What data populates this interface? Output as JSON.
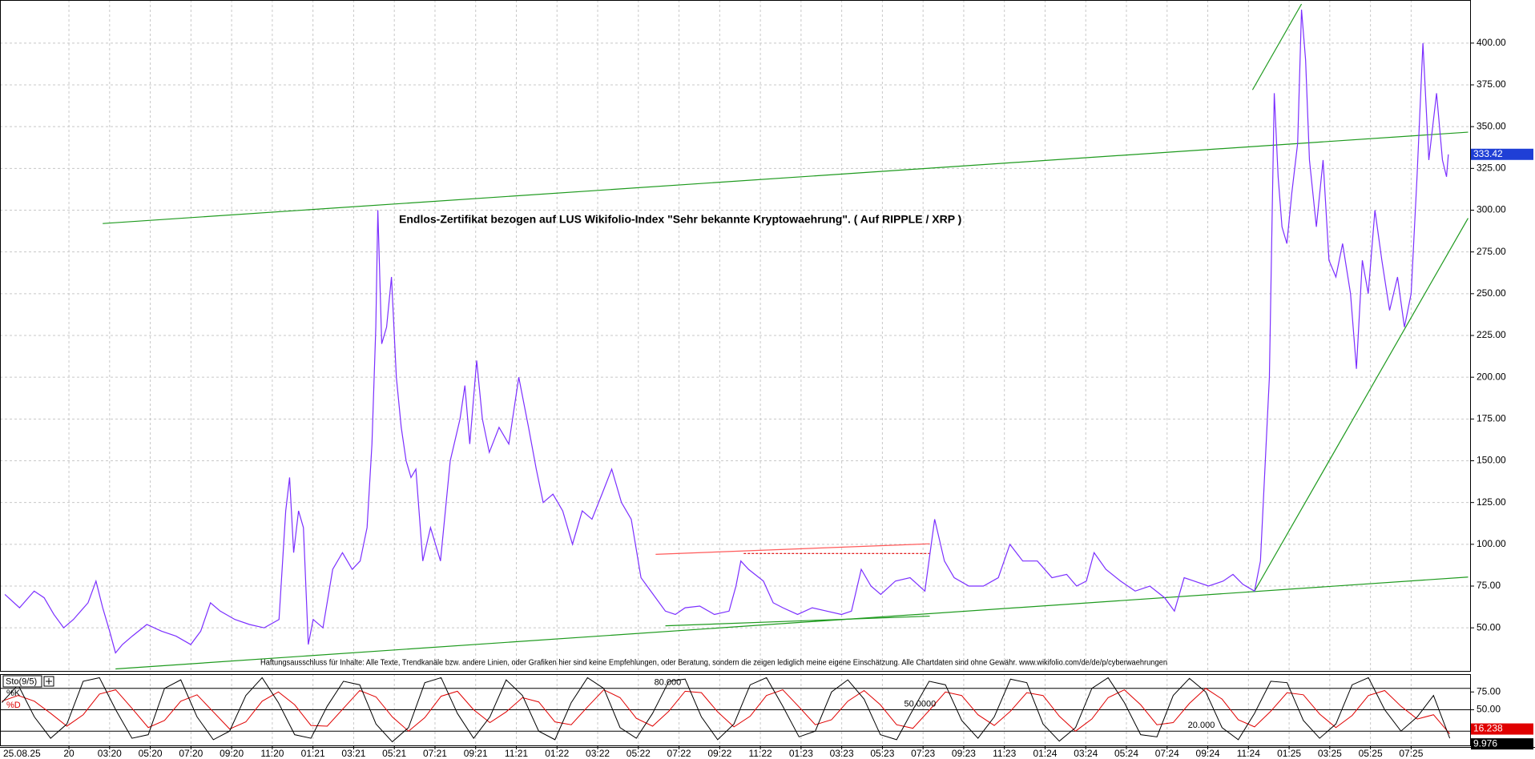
{
  "chart_data": [
    {
      "type": "line",
      "title": "Endlos-Zertifikat bezogen auf LUS Wikifolio-Index \"Sehr bekannte Kryptowaehrung\". ( Auf RIPPLE / XRP )",
      "note": "Haftungsausschluss für Inhalte: Alle Texte, Trendkanäle bzw. andere Linien, oder Grafiken hier sind keine Empfehlungen, oder Beratung, sondern die zeigen lediglich meine eigene Einschätzung. Alle Chartdaten sind ohne Gewähr. www.wikifolio.com/de/de/p/cyberwaehrungen",
      "date_label": "25.08.25",
      "xlim": [
        -2.39,
        69.9
      ],
      "ylim": [
        24.2,
        425.8
      ],
      "yticks": [
        {
          "value": 50,
          "label": "50.00"
        },
        {
          "value": 75,
          "label": "75.00"
        },
        {
          "value": 100,
          "label": "100.00"
        },
        {
          "value": 125,
          "label": "125.00"
        },
        {
          "value": 150,
          "label": "150.00"
        },
        {
          "value": 175,
          "label": "175.00"
        },
        {
          "value": 200,
          "label": "200.00"
        },
        {
          "value": 225,
          "label": "225.00"
        },
        {
          "value": 250,
          "label": "250.00"
        },
        {
          "value": 275,
          "label": "275.00"
        },
        {
          "value": 300,
          "label": "300.00"
        },
        {
          "value": 325,
          "label": "325.00"
        },
        {
          "value": 350,
          "label": "350.00"
        },
        {
          "value": 375,
          "label": "375.00"
        },
        {
          "value": 400,
          "label": "400.00"
        }
      ],
      "grid": true,
      "last_value": 333.42,
      "last_color": "#1f3fd6",
      "series": [
        {
          "color": "#7b2fff",
          "x": [
            -2.15,
            -1.43,
            -0.71,
            -0.22,
            0.26,
            0.74,
            1.22,
            1.94,
            2.33,
            2.66,
            3.0,
            3.29,
            3.63,
            4.11,
            4.83,
            5.55,
            6.27,
            6.99,
            7.48,
            7.96,
            8.44,
            9.16,
            9.88,
            10.6,
            11.33,
            11.66,
            11.85,
            12.05,
            12.29,
            12.53,
            12.77,
            13.01,
            13.49,
            13.97,
            14.45,
            14.93,
            15.32,
            15.66,
            15.9,
            16.09,
            16.19,
            16.38,
            16.62,
            16.86,
            17.1,
            17.34,
            17.58,
            17.82,
            18.06,
            18.4,
            18.78,
            19.27,
            19.75,
            20.23,
            20.47,
            20.71,
            21.05,
            21.33,
            21.67,
            22.15,
            22.63,
            23.12,
            23.6,
            23.98,
            24.32,
            24.8,
            25.28,
            25.76,
            26.24,
            26.72,
            27.21,
            27.69,
            28.17,
            28.65,
            29.13,
            29.61,
            30.33,
            30.82,
            31.3,
            32.02,
            32.74,
            33.46,
            33.8,
            34.04,
            34.42,
            35.15,
            35.63,
            36.11,
            36.83,
            37.55,
            38.27,
            38.99,
            39.48,
            39.96,
            40.44,
            40.92,
            41.64,
            42.36,
            43.09,
            43.57,
            44.05,
            44.53,
            45.25,
            45.97,
            46.7,
            47.27,
            47.9,
            48.62,
            49.34,
            50.06,
            50.55,
            51.03,
            51.41,
            51.99,
            52.71,
            53.43,
            54.15,
            54.88,
            55.36,
            55.84,
            56.32,
            57.04,
            57.76,
            58.24,
            58.73,
            59.3,
            59.59,
            59.83,
            60.03,
            60.17,
            60.27,
            60.46,
            60.65,
            60.89,
            61.13,
            61.42,
            61.61,
            61.81,
            62.0,
            62.34,
            62.67,
            62.96,
            63.3,
            63.63,
            64.02,
            64.31,
            64.6,
            64.89,
            65.22,
            65.56,
            65.94,
            66.33,
            66.67,
            67.0,
            67.29,
            67.58,
            67.87,
            68.25,
            68.54,
            68.74,
            68.83
          ],
          "values": [
            70,
            62,
            72,
            68,
            58,
            50,
            55,
            65,
            78,
            62,
            48,
            35,
            40,
            45,
            52,
            48,
            45,
            40,
            48,
            65,
            60,
            55,
            52,
            50,
            55,
            120,
            140,
            95,
            120,
            110,
            40,
            55,
            50,
            85,
            95,
            85,
            90,
            110,
            160,
            230,
            300,
            220,
            230,
            260,
            200,
            170,
            150,
            140,
            145,
            90,
            110,
            90,
            150,
            175,
            195,
            160,
            210,
            175,
            155,
            170,
            160,
            200,
            170,
            145,
            125,
            130,
            120,
            100,
            120,
            115,
            130,
            145,
            125,
            115,
            80,
            72,
            60,
            58,
            62,
            63,
            58,
            60,
            75,
            90,
            85,
            78,
            65,
            62,
            58,
            62,
            60,
            58,
            60,
            85,
            75,
            70,
            78,
            80,
            72,
            115,
            90,
            80,
            75,
            75,
            80,
            100,
            90,
            90,
            80,
            82,
            75,
            78,
            95,
            85,
            78,
            72,
            75,
            68,
            60,
            80,
            78,
            75,
            78,
            82,
            76,
            72,
            90,
            150,
            200,
            300,
            370,
            320,
            290,
            280,
            310,
            340,
            420,
            390,
            330,
            290,
            330,
            270,
            260,
            280,
            250,
            205,
            270,
            250,
            300,
            270,
            240,
            260,
            230,
            250,
            320,
            400,
            330,
            370,
            330,
            320,
            333.42
          ]
        }
      ],
      "trendlines": [
        {
          "color": "#1e9a1e",
          "x": [
            2.66,
            69.8
          ],
          "values": [
            292,
            346.7
          ]
        },
        {
          "color": "#1e9a1e",
          "x": [
            3.29,
            69.8
          ],
          "values": [
            25.4,
            80.4
          ]
        },
        {
          "color": "#1e9a1e",
          "x": [
            59.3,
            69.8
          ],
          "values": [
            72,
            295.2
          ]
        },
        {
          "color": "#1e9a1e",
          "x": [
            59.2,
            61.61
          ],
          "values": [
            372,
            423.4
          ]
        },
        {
          "color": "#1e9a1e",
          "x": [
            30.33,
            43.33
          ],
          "values": [
            51.2,
            57
          ]
        },
        {
          "color": "#ff5a5a",
          "x": [
            29.85,
            43.33
          ],
          "values": [
            94,
            100.3
          ]
        },
        {
          "color": "#e00000",
          "x": [
            34.18,
            43.33
          ],
          "values": [
            94.5,
            94.5
          ],
          "dashed": true
        }
      ]
    },
    {
      "type": "stochastic",
      "title": "Sto(9/5)",
      "xlim": [
        -2.39,
        69.9
      ],
      "xticks": [
        {
          "value": 1,
          "label": "20"
        },
        {
          "value": 3,
          "label": "03:20"
        },
        {
          "value": 5,
          "label": "05:20"
        },
        {
          "value": 7,
          "label": "07:20"
        },
        {
          "value": 9,
          "label": "09:20"
        },
        {
          "value": 11,
          "label": "11:20"
        },
        {
          "value": 13,
          "label": "01:21"
        },
        {
          "value": 15,
          "label": "03:21"
        },
        {
          "value": 17,
          "label": "05:21"
        },
        {
          "value": 19,
          "label": "07:21"
        },
        {
          "value": 21,
          "label": "09:21"
        },
        {
          "value": 23,
          "label": "11:21"
        },
        {
          "value": 25,
          "label": "01:22"
        },
        {
          "value": 27,
          "label": "03:22"
        },
        {
          "value": 29,
          "label": "05:22"
        },
        {
          "value": 31,
          "label": "07:22"
        },
        {
          "value": 33,
          "label": "09:22"
        },
        {
          "value": 35,
          "label": "11:22"
        },
        {
          "value": 37,
          "label": "01:23"
        },
        {
          "value": 39,
          "label": "03:23"
        },
        {
          "value": 41,
          "label": "05:23"
        },
        {
          "value": 43,
          "label": "07:23"
        },
        {
          "value": 45,
          "label": "09:23"
        },
        {
          "value": 47,
          "label": "11:23"
        },
        {
          "value": 49,
          "label": "01:24"
        },
        {
          "value": 51,
          "label": "03:24"
        },
        {
          "value": 53,
          "label": "05:24"
        },
        {
          "value": 55,
          "label": "07:24"
        },
        {
          "value": 57,
          "label": "09:24"
        },
        {
          "value": 59,
          "label": "11:24"
        },
        {
          "value": 61,
          "label": "01:25"
        },
        {
          "value": 63,
          "label": "03:25"
        },
        {
          "value": 65,
          "label": "05:25"
        },
        {
          "value": 67,
          "label": "07:25"
        }
      ],
      "ylim": [
        0,
        100
      ],
      "yticks": [
        {
          "value": 75,
          "label": "75.00"
        },
        {
          "value": 50,
          "label": "50.00"
        }
      ],
      "hlines": [
        {
          "value": 80,
          "label": "80.000"
        },
        {
          "value": 50,
          "label": "50.0000"
        },
        {
          "value": 20,
          "label": "20.000"
        }
      ],
      "x": [
        -2.3,
        -1.5,
        -0.7,
        0.1,
        0.9,
        1.7,
        2.5,
        3.3,
        4.1,
        4.9,
        5.7,
        6.5,
        7.3,
        8.1,
        8.9,
        9.7,
        10.5,
        11.3,
        12.1,
        12.9,
        13.7,
        14.5,
        15.3,
        16.1,
        16.9,
        17.7,
        18.5,
        19.3,
        20.1,
        20.9,
        21.7,
        22.5,
        23.3,
        24.1,
        24.9,
        25.7,
        26.5,
        27.3,
        28.1,
        28.9,
        29.7,
        30.5,
        31.3,
        32.1,
        32.9,
        33.7,
        34.5,
        35.3,
        36.1,
        36.9,
        37.7,
        38.5,
        39.3,
        40.1,
        40.9,
        41.7,
        42.5,
        43.3,
        44.1,
        44.9,
        45.7,
        46.5,
        47.3,
        48.1,
        48.9,
        49.7,
        50.5,
        51.3,
        52.1,
        52.9,
        53.7,
        54.5,
        55.3,
        56.1,
        56.9,
        57.7,
        58.5,
        59.3,
        60.1,
        60.9,
        61.7,
        62.5,
        63.3,
        64.1,
        64.9,
        65.7,
        66.5,
        67.3,
        68.1,
        68.9
      ],
      "series": [
        {
          "name": "%K",
          "color": "#000000",
          "values": [
            60,
            85,
            40,
            10,
            30,
            90,
            95,
            50,
            10,
            15,
            80,
            92,
            40,
            8,
            20,
            70,
            95,
            60,
            15,
            10,
            55,
            90,
            85,
            30,
            5,
            25,
            88,
            95,
            45,
            10,
            40,
            92,
            70,
            20,
            8,
            60,
            95,
            80,
            25,
            10,
            45,
            90,
            93,
            40,
            8,
            30,
            85,
            95,
            55,
            12,
            20,
            75,
            92,
            65,
            15,
            8,
            50,
            90,
            85,
            35,
            10,
            40,
            93,
            88,
            30,
            6,
            25,
            80,
            95,
            60,
            15,
            12,
            70,
            94,
            75,
            25,
            8,
            45,
            90,
            88,
            35,
            10,
            30,
            85,
            95,
            50,
            20,
            40,
            70,
            9.976
          ]
        },
        {
          "name": "%D",
          "color": "#e00000",
          "values": [
            62,
            70,
            62,
            45,
            27,
            43,
            72,
            78,
            52,
            25,
            35,
            62,
            71,
            47,
            23,
            33,
            62,
            75,
            57,
            28,
            27,
            52,
            77,
            68,
            40,
            20,
            39,
            69,
            76,
            50,
            32,
            47,
            67,
            61,
            33,
            29,
            54,
            78,
            67,
            38,
            27,
            48,
            76,
            74,
            47,
            26,
            41,
            70,
            78,
            54,
            29,
            36,
            62,
            77,
            57,
            29,
            24,
            49,
            75,
            70,
            43,
            28,
            48,
            74,
            70,
            41,
            20,
            37,
            67,
            78,
            57,
            29,
            32,
            59,
            80,
            65,
            36,
            26,
            48,
            74,
            71,
            44,
            25,
            42,
            70,
            77,
            55,
            37,
            43,
            16.238
          ]
        }
      ]
    }
  ]
}
